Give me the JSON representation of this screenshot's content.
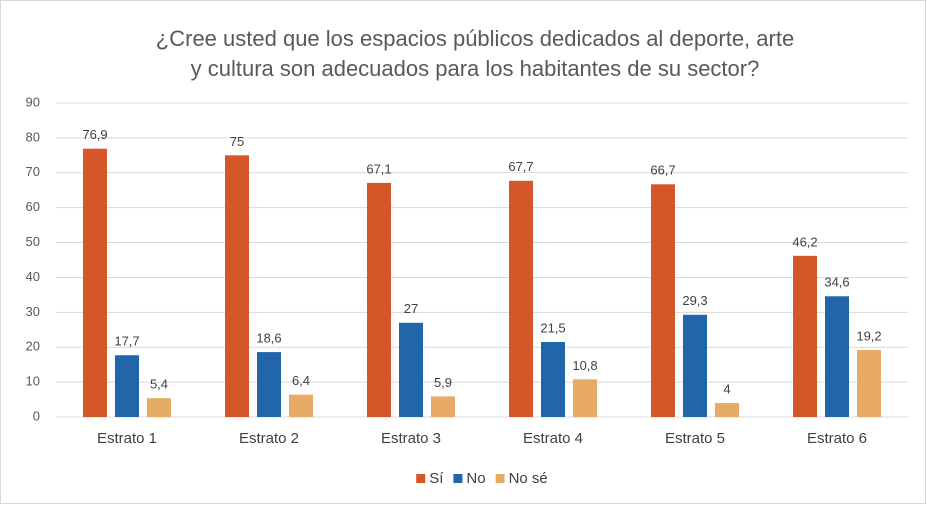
{
  "chart_data": {
    "type": "bar",
    "title": [
      "¿Cree usted que los espacios públicos dedicados al deporte, arte",
      "y cultura son adecuados para los habitantes de su sector?"
    ],
    "categories": [
      "Estrato 1",
      "Estrato 2",
      "Estrato 3",
      "Estrato 4",
      "Estrato 5",
      "Estrato 6"
    ],
    "series": [
      {
        "name": "Sí",
        "color": "#d4572a",
        "values": [
          76.9,
          75,
          67.1,
          67.7,
          66.7,
          46.2
        ],
        "value_labels": [
          "76,9",
          "75",
          "67,1",
          "67,7",
          "66,7",
          "46,2"
        ]
      },
      {
        "name": "No",
        "color": "#2166a8",
        "values": [
          17.7,
          18.6,
          27,
          21.5,
          29.3,
          34.6
        ],
        "value_labels": [
          "17,7",
          "18,6",
          "27",
          "21,5",
          "29,3",
          "34,6"
        ]
      },
      {
        "name": "No sé",
        "color": "#e8ab67",
        "values": [
          5.4,
          6.4,
          5.9,
          10.8,
          4,
          19.2
        ],
        "value_labels": [
          "5,4",
          "6,4",
          "5,9",
          "10,8",
          "4",
          "19,2"
        ]
      }
    ],
    "ylim": [
      0,
      90
    ],
    "yticks": [
      0,
      10,
      20,
      30,
      40,
      50,
      60,
      70,
      80,
      90
    ],
    "grid": true,
    "legend": "bottom"
  }
}
